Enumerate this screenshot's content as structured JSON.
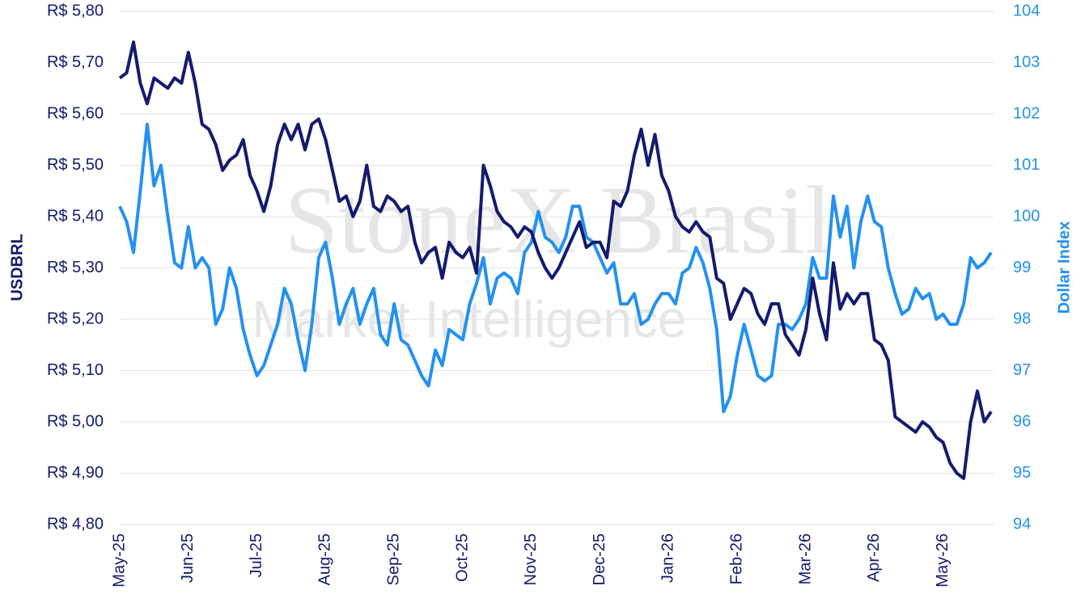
{
  "chart_data": {
    "type": "line",
    "watermark": [
      "StoneX Brasil",
      "Market Intelligence"
    ],
    "ylabel": "USDBRL",
    "y2label": "Dollar Index",
    "categories": [
      "May-25",
      null,
      null,
      null,
      null,
      null,
      null,
      null,
      null,
      null,
      "Jun-25",
      null,
      null,
      null,
      null,
      null,
      null,
      null,
      null,
      null,
      "Jul-25",
      null,
      null,
      null,
      null,
      null,
      null,
      null,
      null,
      null,
      "Aug-25",
      null,
      null,
      null,
      null,
      null,
      null,
      null,
      null,
      null,
      "Sep-25",
      null,
      null,
      null,
      null,
      null,
      null,
      null,
      null,
      null,
      "Oct-25",
      null,
      null,
      null,
      null,
      null,
      null,
      null,
      null,
      null,
      "Nov-25",
      null,
      null,
      null,
      null,
      null,
      null,
      null,
      null,
      null,
      "Dec-25",
      null,
      null,
      null,
      null,
      null,
      null,
      null,
      null,
      null,
      "Jan-26",
      null,
      null,
      null,
      null,
      null,
      null,
      null,
      null,
      null,
      "Feb-26",
      null,
      null,
      null,
      null,
      null,
      null,
      null,
      null,
      null,
      "Mar-26",
      null,
      null,
      null,
      null,
      null,
      null,
      null,
      null,
      null,
      "Apr-26",
      null,
      null,
      null,
      null,
      null,
      null,
      null,
      null,
      null,
      "May-26",
      null,
      null,
      null,
      null,
      null,
      null,
      null
    ],
    "series": [
      {
        "name": "USDBRL",
        "color": "#141a6e",
        "values": [
          5.67,
          5.68,
          5.74,
          5.66,
          5.62,
          5.67,
          5.66,
          5.65,
          5.67,
          5.66,
          5.72,
          5.66,
          5.58,
          5.57,
          5.54,
          5.49,
          5.51,
          5.52,
          5.55,
          5.48,
          5.45,
          5.41,
          5.46,
          5.54,
          5.58,
          5.55,
          5.58,
          5.53,
          5.58,
          5.59,
          5.55,
          5.49,
          5.43,
          5.44,
          5.4,
          5.43,
          5.5,
          5.42,
          5.41,
          5.44,
          5.43,
          5.41,
          5.42,
          5.35,
          5.31,
          5.33,
          5.34,
          5.28,
          5.35,
          5.33,
          5.32,
          5.34,
          5.29,
          5.5,
          5.46,
          5.41,
          5.39,
          5.38,
          5.36,
          5.38,
          5.37,
          5.33,
          5.3,
          5.28,
          5.3,
          5.33,
          5.36,
          5.39,
          5.34,
          5.35,
          5.35,
          5.32,
          5.43,
          5.42,
          5.45,
          5.52,
          5.57,
          5.5,
          5.56,
          5.48,
          5.45,
          5.4,
          5.38,
          5.37,
          5.39,
          5.37,
          5.36,
          5.28,
          5.27,
          5.2,
          5.23,
          5.26,
          5.25,
          5.21,
          5.19,
          5.23,
          5.23,
          5.17,
          5.15,
          5.13,
          5.18,
          5.28,
          5.21,
          5.16,
          5.31,
          5.22,
          5.25,
          5.23,
          5.25,
          5.25,
          5.16,
          5.15,
          5.12,
          5.01,
          5.0,
          4.99,
          4.98,
          5.0,
          4.99,
          4.97,
          4.96,
          4.92,
          4.9,
          4.89,
          5.0,
          5.06,
          5.0,
          5.02
        ]
      },
      {
        "name": "Dollar Index",
        "color": "#2491f0",
        "axis": "y2",
        "values": [
          100.2,
          99.9,
          99.3,
          100.5,
          101.8,
          100.6,
          101.0,
          100.0,
          99.1,
          99.0,
          99.8,
          99.0,
          99.2,
          99.0,
          97.9,
          98.2,
          99.0,
          98.6,
          97.8,
          97.3,
          96.9,
          97.1,
          97.5,
          97.9,
          98.6,
          98.3,
          97.6,
          97.0,
          97.9,
          99.2,
          99.5,
          98.8,
          97.9,
          98.3,
          98.6,
          97.9,
          98.3,
          98.6,
          97.7,
          97.5,
          98.3,
          97.6,
          97.5,
          97.2,
          96.9,
          96.7,
          97.4,
          97.1,
          97.8,
          97.7,
          97.6,
          98.3,
          98.7,
          99.2,
          98.3,
          98.8,
          98.9,
          98.8,
          98.5,
          99.3,
          99.5,
          100.1,
          99.6,
          99.5,
          99.3,
          99.6,
          100.2,
          100.2,
          99.6,
          99.5,
          99.2,
          98.9,
          99.1,
          98.3,
          98.3,
          98.5,
          97.9,
          98.0,
          98.3,
          98.5,
          98.5,
          98.3,
          98.9,
          99.0,
          99.4,
          99.1,
          98.6,
          97.8,
          96.2,
          96.5,
          97.3,
          97.9,
          97.4,
          96.9,
          96.8,
          96.9,
          97.9,
          97.9,
          97.8,
          98.0,
          98.3,
          99.2,
          98.8,
          98.8,
          100.4,
          99.6,
          100.2,
          99.0,
          99.9,
          100.4,
          99.9,
          99.8,
          99.0,
          98.5,
          98.1,
          98.2,
          98.6,
          98.4,
          98.5,
          98.0,
          98.1,
          97.9,
          97.9,
          98.3,
          99.2,
          99.0,
          99.1,
          99.3
        ]
      }
    ],
    "ylim": [
      4.8,
      5.8
    ],
    "yticks": [
      {
        "value": 4.8,
        "label": "R$ 4,80"
      },
      {
        "value": 4.9,
        "label": "R$ 4,90"
      },
      {
        "value": 5.0,
        "label": "R$ 5,00"
      },
      {
        "value": 5.1,
        "label": "R$ 5,10"
      },
      {
        "value": 5.2,
        "label": "R$ 5,20"
      },
      {
        "value": 5.3,
        "label": "R$ 5,30"
      },
      {
        "value": 5.4,
        "label": "R$ 5,40"
      },
      {
        "value": 5.5,
        "label": "R$ 5,50"
      },
      {
        "value": 5.6,
        "label": "R$ 5,60"
      },
      {
        "value": 5.7,
        "label": "R$ 5,70"
      },
      {
        "value": 5.8,
        "label": "R$ 5,80"
      }
    ],
    "y2lim": [
      94,
      104
    ],
    "y2ticks": [
      94,
      95,
      96,
      97,
      98,
      99,
      100,
      101,
      102,
      103,
      104
    ],
    "grid": true
  }
}
